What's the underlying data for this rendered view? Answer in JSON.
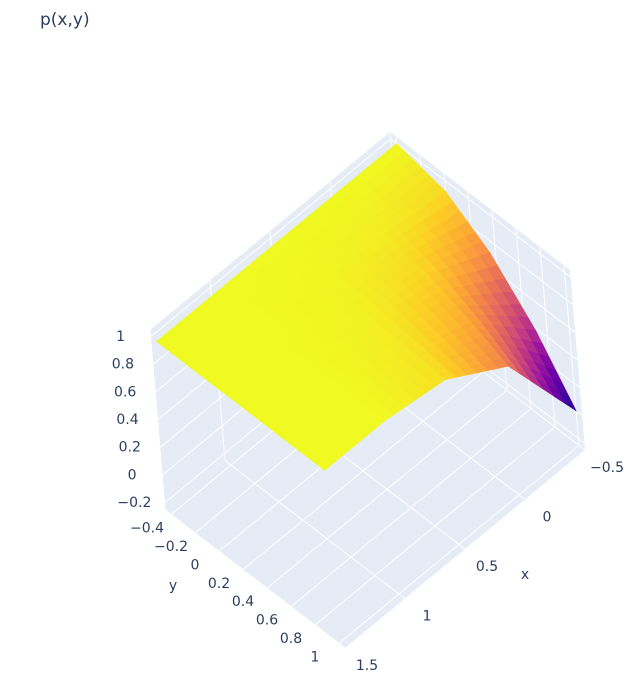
{
  "chart_data": {
    "type": "surface",
    "title": "p(x,y)",
    "x_title": "x",
    "y_title": "y",
    "x": [
      -0.5,
      0,
      0.5,
      1,
      1.5
    ],
    "y": [
      -0.4,
      0,
      0.35,
      0.7,
      1
    ],
    "z": [
      [
        1,
        1,
        1,
        1,
        1
      ],
      [
        0.92,
        0.97,
        0.99,
        1,
        1
      ],
      [
        0.71,
        0.91,
        0.98,
        1,
        1
      ],
      [
        0.38,
        0.8,
        0.96,
        1,
        1
      ],
      [
        0,
        0.68,
        0.94,
        1,
        1
      ]
    ],
    "colorscale": [
      "#0d0887",
      "#46039f",
      "#7201a8",
      "#9c179e",
      "#bd3786",
      "#d8576b",
      "#ed7953",
      "#fb9f3a",
      "#fdca26",
      "#f0f921"
    ],
    "xlim": [
      -0.5,
      1.5
    ],
    "ylim": [
      -0.45,
      1.05
    ],
    "zlim": [
      -0.25,
      1.05
    ],
    "xticks": [
      {
        "value": -0.5,
        "label": "−0.5"
      },
      0,
      0.5,
      1,
      1.5
    ],
    "yticks": [
      {
        "value": -0.4,
        "label": "−0.4"
      },
      {
        "value": -0.2,
        "label": "−0.2"
      },
      0,
      0.2,
      0.4,
      0.6,
      0.8,
      1
    ],
    "zticks": [
      {
        "value": -0.2,
        "label": "−0.2"
      },
      0,
      0.2,
      0.4,
      0.6,
      0.8,
      1
    ],
    "grid": true
  }
}
